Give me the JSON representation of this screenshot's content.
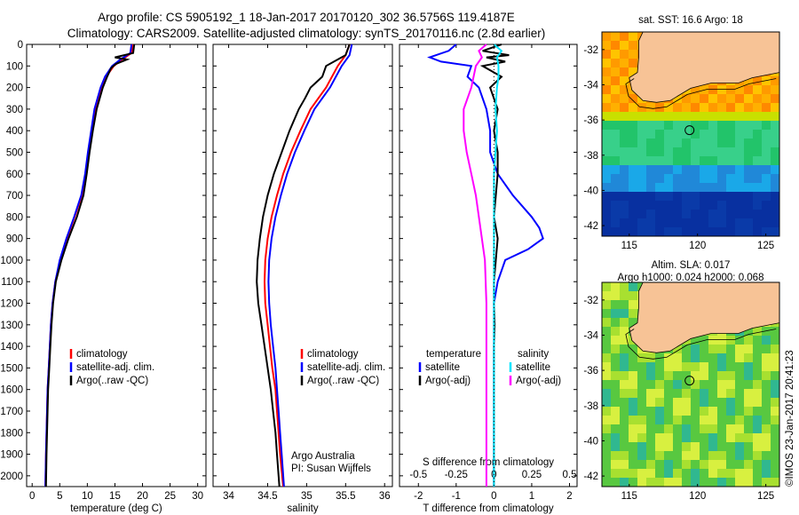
{
  "header": {
    "line1": "Argo profile: CS 5905192_1 18-Jan-2017 20170120_302 36.5756S 119.4187E",
    "line2": "Climatology: CARS2009. Satellite-adjusted climatology: synTS_20170116.nc (2.8d earlier)"
  },
  "colors": {
    "climatology": "#ff0000",
    "satellite": "#0000ff",
    "argo": "#000000",
    "sal_satellite": "#00e5ff",
    "sal_argo": "#ff00ff",
    "land": "#f7c396"
  },
  "depth_axis": {
    "ticks": [
      "0",
      "100",
      "200",
      "300",
      "400",
      "500",
      "600",
      "700",
      "800",
      "900",
      "1000",
      "1100",
      "1200",
      "1300",
      "1400",
      "1500",
      "1600",
      "1700",
      "1800",
      "1900",
      "2000"
    ],
    "range": [
      0,
      2050
    ]
  },
  "credit": {
    "line1": "Argo Australia",
    "line2": "PI: Susan Wijffels"
  },
  "sst_map": {
    "title": "sat. SST: 16.6  Argo: 18",
    "lat_ticks": [
      "-32",
      "-34",
      "-36",
      "-38",
      "-40",
      "-42"
    ],
    "lon_ticks": [
      "115",
      "120",
      "125"
    ],
    "argo_lat": -36.5756,
    "argo_lon": 119.4187
  },
  "sla_map": {
    "title1": "Altim. SLA: 0.017",
    "title2": "Argo h1000: 0.024 h2000: 0.068",
    "lat_ticks": [
      "-32",
      "-34",
      "-36",
      "-38",
      "-40",
      "-42"
    ],
    "lon_ticks": [
      "115",
      "120",
      "125"
    ]
  },
  "watermark": "©IMOS 23-Jan-2017 20:41:23",
  "chart_data": [
    {
      "type": "line",
      "xlabel": "temperature (deg C)",
      "ylabel": "",
      "xlim": [
        -1,
        31.5
      ],
      "ylim": [
        2050,
        0
      ],
      "xticks": [
        "0",
        "5",
        "10",
        "15",
        "20",
        "25",
        "30"
      ],
      "legend": [
        "climatology",
        "satellite-adj. clim.",
        "Argo(..raw -QC)"
      ],
      "legend_position": "lower-right",
      "series": [
        {
          "name": "climatology",
          "depth": [
            0,
            40,
            70,
            100,
            150,
            200,
            300,
            400,
            500,
            600,
            700,
            800,
            900,
            1000,
            1100,
            1200,
            1300,
            1400,
            1500,
            1600,
            1700,
            1800,
            1900,
            2050
          ],
          "values": [
            18.3,
            18.0,
            16.3,
            14.8,
            13.4,
            12.6,
            11.5,
            10.8,
            10.2,
            9.7,
            9.0,
            7.7,
            6.3,
            5.1,
            4.2,
            3.7,
            3.4,
            3.2,
            3.0,
            2.8,
            2.7,
            2.6,
            2.5,
            2.4
          ]
        },
        {
          "name": "satellite-adj. clim.",
          "depth": [
            0,
            40,
            70,
            100,
            150,
            200,
            300,
            400,
            500,
            600,
            700,
            800,
            900,
            1000,
            1100,
            1200,
            1300,
            1400,
            1500,
            1600,
            1700,
            1800,
            1900,
            2050
          ],
          "values": [
            18.0,
            17.8,
            16.0,
            14.5,
            13.2,
            12.4,
            11.3,
            10.7,
            10.1,
            9.6,
            8.9,
            7.6,
            6.2,
            5.0,
            4.2,
            3.7,
            3.4,
            3.2,
            3.0,
            2.8,
            2.7,
            2.6,
            2.5,
            2.4
          ]
        },
        {
          "name": "Argo(..raw -QC)",
          "depth": [
            0,
            20,
            40,
            60,
            70,
            90,
            110,
            150,
            200,
            300,
            400,
            500,
            600,
            700,
            800,
            900,
            1000,
            1100,
            1200,
            1300,
            1400,
            1500,
            1600,
            1700,
            1800,
            1900,
            2050
          ],
          "values": [
            18.5,
            18.4,
            18.3,
            15.0,
            17.2,
            15.2,
            14.3,
            13.6,
            12.8,
            11.7,
            11.0,
            10.4,
            9.9,
            9.3,
            8.1,
            6.6,
            5.3,
            4.3,
            3.8,
            3.5,
            3.3,
            3.1,
            2.9,
            2.8,
            2.7,
            2.6,
            2.5
          ]
        }
      ]
    },
    {
      "type": "line",
      "xlabel": "salinity",
      "ylabel": "",
      "xlim": [
        33.8,
        36.1
      ],
      "ylim": [
        2050,
        0
      ],
      "xticks": [
        "34",
        "34.5",
        "35",
        "35.5",
        "36"
      ],
      "legend": [
        "climatology",
        "satellite-adj. clim.",
        "Argo(..raw -QC)"
      ],
      "legend_position": "lower-right",
      "series": [
        {
          "name": "climatology",
          "depth": [
            0,
            50,
            100,
            200,
            300,
            400,
            500,
            600,
            700,
            800,
            900,
            1000,
            1100,
            1200,
            1300,
            1400,
            1500,
            1600,
            1700,
            1800,
            1900,
            2050
          ],
          "values": [
            35.55,
            35.5,
            35.4,
            35.25,
            35.05,
            34.92,
            34.8,
            34.7,
            34.62,
            34.55,
            34.5,
            34.47,
            34.46,
            34.47,
            34.5,
            34.53,
            34.56,
            34.6,
            34.62,
            34.64,
            34.66,
            34.7
          ]
        },
        {
          "name": "satellite-adj. clim.",
          "depth": [
            0,
            50,
            100,
            200,
            300,
            400,
            500,
            600,
            700,
            800,
            900,
            1000,
            1100,
            1200,
            1300,
            1400,
            1500,
            1600,
            1700,
            1800,
            1900,
            2050
          ],
          "values": [
            35.58,
            35.55,
            35.45,
            35.3,
            35.1,
            34.97,
            34.85,
            34.75,
            34.67,
            34.6,
            34.55,
            34.52,
            34.51,
            34.52,
            34.54,
            34.57,
            34.6,
            34.62,
            34.64,
            34.66,
            34.68,
            34.71
          ]
        },
        {
          "name": "Argo(..raw -QC)",
          "depth": [
            0,
            50,
            100,
            150,
            200,
            250,
            300,
            400,
            500,
            600,
            700,
            800,
            900,
            1000,
            1100,
            1200,
            1300,
            1400,
            1500,
            1600,
            1700,
            1800,
            1900,
            2050
          ],
          "values": [
            35.55,
            35.5,
            35.25,
            35.2,
            35.05,
            34.98,
            34.9,
            34.78,
            34.68,
            34.58,
            34.5,
            34.44,
            34.4,
            34.37,
            34.36,
            34.38,
            34.42,
            34.46,
            34.5,
            34.54,
            34.57,
            34.6,
            34.62,
            34.65
          ]
        }
      ]
    },
    {
      "type": "line",
      "xlabel": "T difference from climatology",
      "ylabel": "",
      "xlim": [
        -2.5,
        2.2
      ],
      "ylim": [
        2050,
        0
      ],
      "xticks": [
        "-2",
        "-1",
        "0",
        "1",
        "2"
      ],
      "top_label": "S difference from climatology",
      "top_ticks": [
        "-0.5",
        "-0.25",
        "0",
        "0.25",
        "0.5"
      ],
      "legend_title_left": "temperature",
      "legend_title_right": "salinity",
      "legend_left": [
        "satellite",
        "Argo(-adj)"
      ],
      "legend_right": [
        "satellite",
        "Argo(-adj)"
      ],
      "series": [
        {
          "name": "satellite",
          "group": "temperature",
          "depth": [
            0,
            30,
            60,
            80,
            100,
            150,
            200,
            300,
            400,
            500,
            600,
            700,
            800,
            850,
            900,
            950,
            1000,
            1100,
            1200,
            1400,
            1600,
            1800,
            2050
          ],
          "values": [
            -1.0,
            -1.2,
            -1.7,
            -1.4,
            -0.6,
            -0.7,
            -0.4,
            -0.2,
            -0.1,
            -0.1,
            0.1,
            0.5,
            1.0,
            1.2,
            1.3,
            0.9,
            0.3,
            0.1,
            0.0,
            0.0,
            0.0,
            0.0,
            0.0
          ]
        },
        {
          "name": "Argo(-adj)",
          "group": "temperature",
          "depth": [
            0,
            30,
            50,
            60,
            80,
            100,
            150,
            200,
            300,
            400,
            500,
            600,
            700,
            800,
            900,
            1000,
            1100,
            1200,
            1300,
            1400,
            1500,
            1600,
            1800,
            2050
          ],
          "values": [
            0.2,
            -0.3,
            0.4,
            -0.2,
            0.3,
            -0.3,
            0.2,
            -0.1,
            0.1,
            0.0,
            0.1,
            0.1,
            0.05,
            0.0,
            0.1,
            0.05,
            0.0,
            0.0,
            0.02,
            0.0,
            0.0,
            0.0,
            0.0,
            0.0
          ]
        },
        {
          "name": "satellite",
          "group": "salinity",
          "depth": [
            0,
            30,
            60,
            100,
            150,
            200,
            300,
            400,
            500,
            600,
            700,
            800,
            900,
            1000,
            1100,
            1200,
            1400,
            1600,
            1800,
            2050
          ],
          "values": [
            0.0,
            0.05,
            0.02,
            0.03,
            0.03,
            0.02,
            0.01,
            0.02,
            0.01,
            0.0,
            0.0,
            0.0,
            0.0,
            0.0,
            0.0,
            0.0,
            0.0,
            0.0,
            0.0,
            0.0
          ]
        },
        {
          "name": "Argo(-adj)",
          "group": "salinity",
          "depth": [
            0,
            30,
            60,
            100,
            200,
            300,
            400,
            500,
            600,
            700,
            800,
            900,
            1000,
            1200,
            1400,
            1600,
            1800,
            2050
          ],
          "values": [
            -0.05,
            -0.1,
            -0.08,
            -0.12,
            -0.15,
            -0.2,
            -0.2,
            -0.18,
            -0.15,
            -0.12,
            -0.1,
            -0.08,
            -0.06,
            -0.05,
            -0.05,
            -0.05,
            -0.05,
            -0.05
          ]
        }
      ]
    }
  ]
}
